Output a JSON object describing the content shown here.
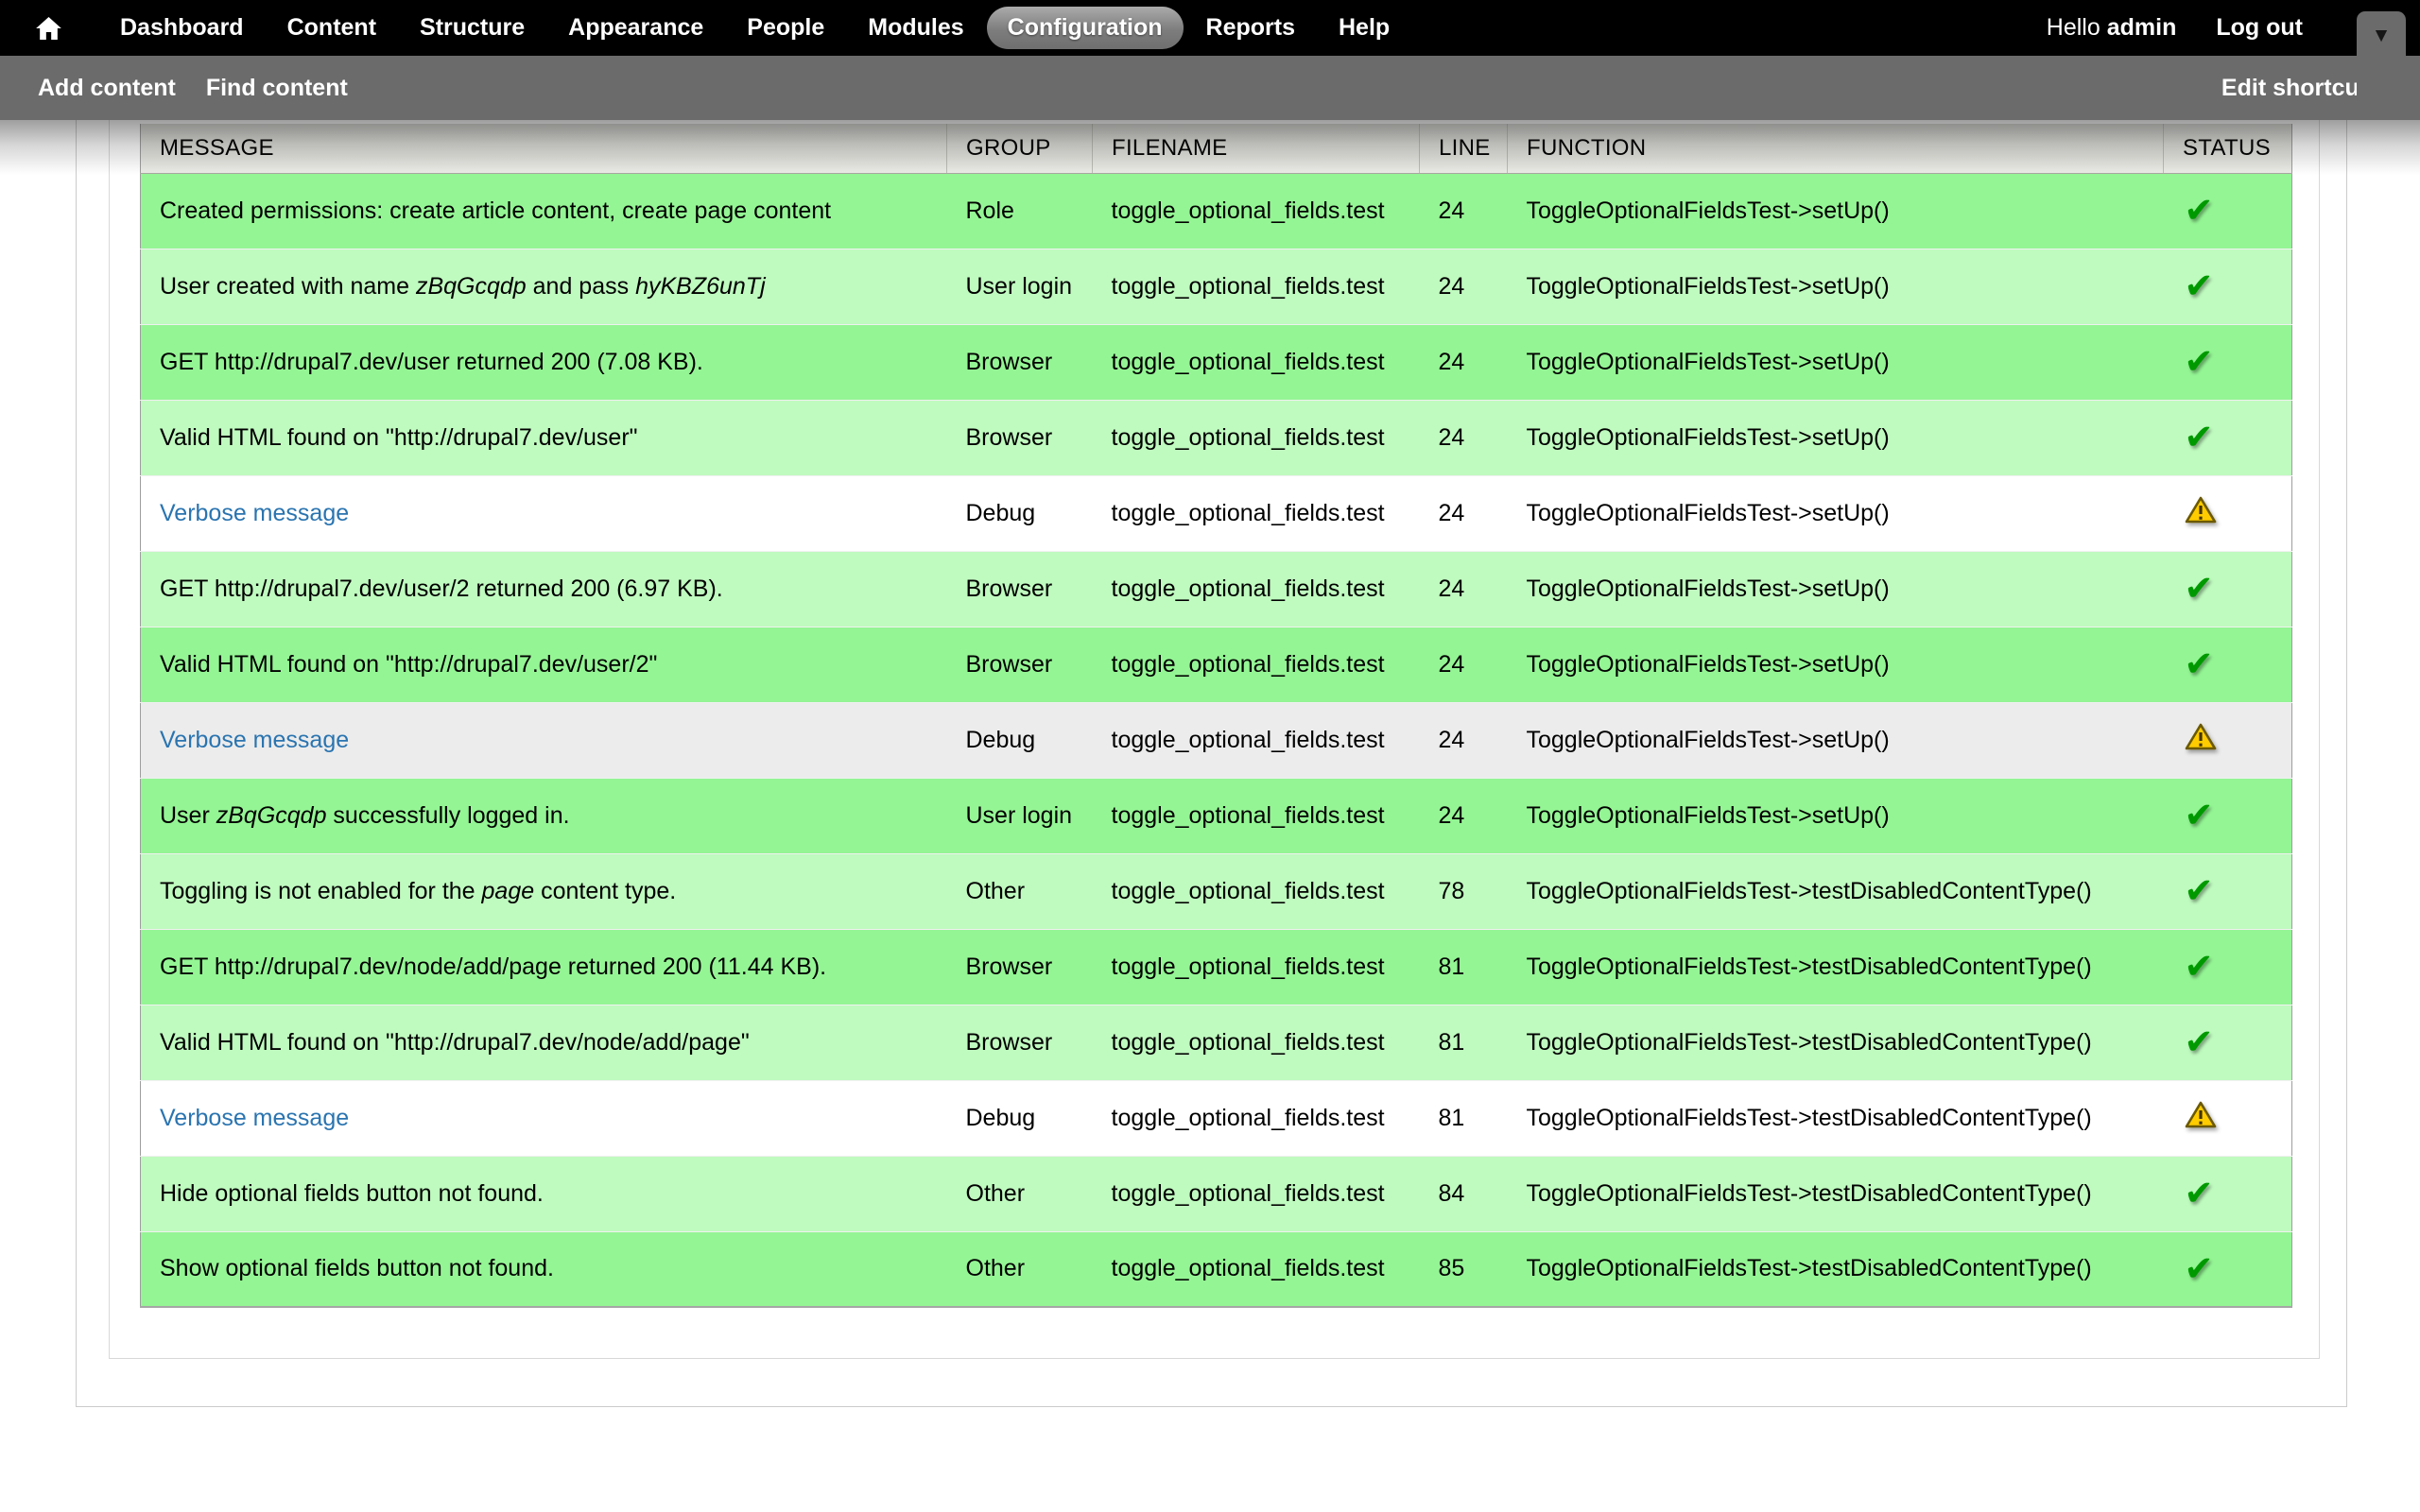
{
  "toolbar": {
    "home_icon": "home-icon",
    "items": [
      {
        "label": "Dashboard"
      },
      {
        "label": "Content"
      },
      {
        "label": "Structure"
      },
      {
        "label": "Appearance"
      },
      {
        "label": "People"
      },
      {
        "label": "Modules"
      },
      {
        "label": "Configuration",
        "active": true
      },
      {
        "label": "Reports"
      },
      {
        "label": "Help"
      }
    ],
    "greeting_prefix": "Hello",
    "username": "admin",
    "logout_label": "Log out",
    "toggle_icon": "chevron-down-icon"
  },
  "shortcut_bar": {
    "items": [
      {
        "label": "Add content"
      },
      {
        "label": "Find content"
      }
    ],
    "edit_label": "Edit shortcuts"
  },
  "results_table": {
    "columns": [
      "MESSAGE",
      "GROUP",
      "FILENAME",
      "LINE",
      "FUNCTION",
      "STATUS"
    ],
    "status_icons": {
      "pass": "check-icon",
      "warning": "warning-icon"
    },
    "colors": {
      "pass_row_odd": "#94f594",
      "pass_row_even": "#bffabf",
      "debug_row_odd": "#ffffff",
      "debug_row_even": "#ececec",
      "link": "#2a74b0",
      "check": "#009a00",
      "warning_fill": "#ffcc00",
      "toolbar_bg": "#000000",
      "shortcut_bar_bg": "#6b6b6b"
    },
    "rows": [
      {
        "message": [
          {
            "t": "Created permissions: create article content, create page content"
          }
        ],
        "group": "Role",
        "filename": "toggle_optional_fields.test",
        "line": "24",
        "function": "ToggleOptionalFieldsTest->setUp()",
        "status": "pass"
      },
      {
        "message": [
          {
            "t": "User created with name "
          },
          {
            "t": "zBqGcqdp",
            "italic": true
          },
          {
            "t": " and pass "
          },
          {
            "t": "hyKBZ6unTj",
            "italic": true
          }
        ],
        "group": "User login",
        "filename": "toggle_optional_fields.test",
        "line": "24",
        "function": "ToggleOptionalFieldsTest->setUp()",
        "status": "pass"
      },
      {
        "message": [
          {
            "t": "GET http://drupal7.dev/user returned 200 (7.08 KB)."
          }
        ],
        "group": "Browser",
        "filename": "toggle_optional_fields.test",
        "line": "24",
        "function": "ToggleOptionalFieldsTest->setUp()",
        "status": "pass"
      },
      {
        "message": [
          {
            "t": "Valid HTML found on \"http://drupal7.dev/user\""
          }
        ],
        "group": "Browser",
        "filename": "toggle_optional_fields.test",
        "line": "24",
        "function": "ToggleOptionalFieldsTest->setUp()",
        "status": "pass"
      },
      {
        "message": [
          {
            "t": "Verbose message",
            "link": true
          }
        ],
        "group": "Debug",
        "filename": "toggle_optional_fields.test",
        "line": "24",
        "function": "ToggleOptionalFieldsTest->setUp()",
        "status": "warning"
      },
      {
        "message": [
          {
            "t": "GET http://drupal7.dev/user/2 returned 200 (6.97 KB)."
          }
        ],
        "group": "Browser",
        "filename": "toggle_optional_fields.test",
        "line": "24",
        "function": "ToggleOptionalFieldsTest->setUp()",
        "status": "pass"
      },
      {
        "message": [
          {
            "t": "Valid HTML found on \"http://drupal7.dev/user/2\""
          }
        ],
        "group": "Browser",
        "filename": "toggle_optional_fields.test",
        "line": "24",
        "function": "ToggleOptionalFieldsTest->setUp()",
        "status": "pass"
      },
      {
        "message": [
          {
            "t": "Verbose message",
            "link": true
          }
        ],
        "group": "Debug",
        "filename": "toggle_optional_fields.test",
        "line": "24",
        "function": "ToggleOptionalFieldsTest->setUp()",
        "status": "warning"
      },
      {
        "message": [
          {
            "t": "User "
          },
          {
            "t": "zBqGcqdp",
            "italic": true
          },
          {
            "t": " successfully logged in."
          }
        ],
        "group": "User login",
        "filename": "toggle_optional_fields.test",
        "line": "24",
        "function": "ToggleOptionalFieldsTest->setUp()",
        "status": "pass"
      },
      {
        "message": [
          {
            "t": "Toggling is not enabled for the "
          },
          {
            "t": "page",
            "italic": true
          },
          {
            "t": " content type."
          }
        ],
        "group": "Other",
        "filename": "toggle_optional_fields.test",
        "line": "78",
        "function": "ToggleOptionalFieldsTest->testDisabledContentType()",
        "status": "pass"
      },
      {
        "message": [
          {
            "t": "GET http://drupal7.dev/node/add/page returned 200 (11.44 KB)."
          }
        ],
        "group": "Browser",
        "filename": "toggle_optional_fields.test",
        "line": "81",
        "function": "ToggleOptionalFieldsTest->testDisabledContentType()",
        "status": "pass"
      },
      {
        "message": [
          {
            "t": "Valid HTML found on \"http://drupal7.dev/node/add/page\""
          }
        ],
        "group": "Browser",
        "filename": "toggle_optional_fields.test",
        "line": "81",
        "function": "ToggleOptionalFieldsTest->testDisabledContentType()",
        "status": "pass"
      },
      {
        "message": [
          {
            "t": "Verbose message",
            "link": true
          }
        ],
        "group": "Debug",
        "filename": "toggle_optional_fields.test",
        "line": "81",
        "function": "ToggleOptionalFieldsTest->testDisabledContentType()",
        "status": "warning"
      },
      {
        "message": [
          {
            "t": "Hide optional fields button not found."
          }
        ],
        "group": "Other",
        "filename": "toggle_optional_fields.test",
        "line": "84",
        "function": "ToggleOptionalFieldsTest->testDisabledContentType()",
        "status": "pass"
      },
      {
        "message": [
          {
            "t": "Show optional fields button not found."
          }
        ],
        "group": "Other",
        "filename": "toggle_optional_fields.test",
        "line": "85",
        "function": "ToggleOptionalFieldsTest->testDisabledContentType()",
        "status": "pass"
      }
    ]
  }
}
